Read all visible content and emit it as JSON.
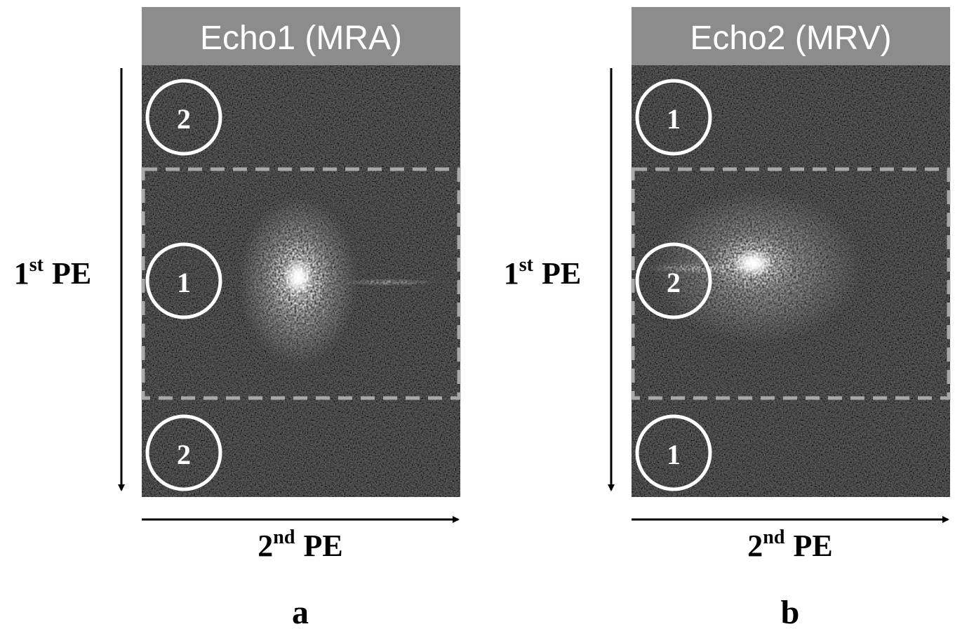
{
  "panels": [
    {
      "title": "Echo1 (MRA)",
      "y_axis": {
        "number": "1",
        "superscript": "st",
        "text": "PE"
      },
      "x_axis": {
        "number": "2",
        "superscript": "nd",
        "text": "PE"
      },
      "circles": [
        "2",
        "1",
        "2"
      ],
      "label": "a"
    },
    {
      "title": "Echo2 (MRV)",
      "y_axis": {
        "number": "1",
        "superscript": "st",
        "text": "PE"
      },
      "x_axis": {
        "number": "2",
        "superscript": "nd",
        "text": "PE"
      },
      "circles": [
        "1",
        "2",
        "1"
      ],
      "label": "b"
    }
  ]
}
